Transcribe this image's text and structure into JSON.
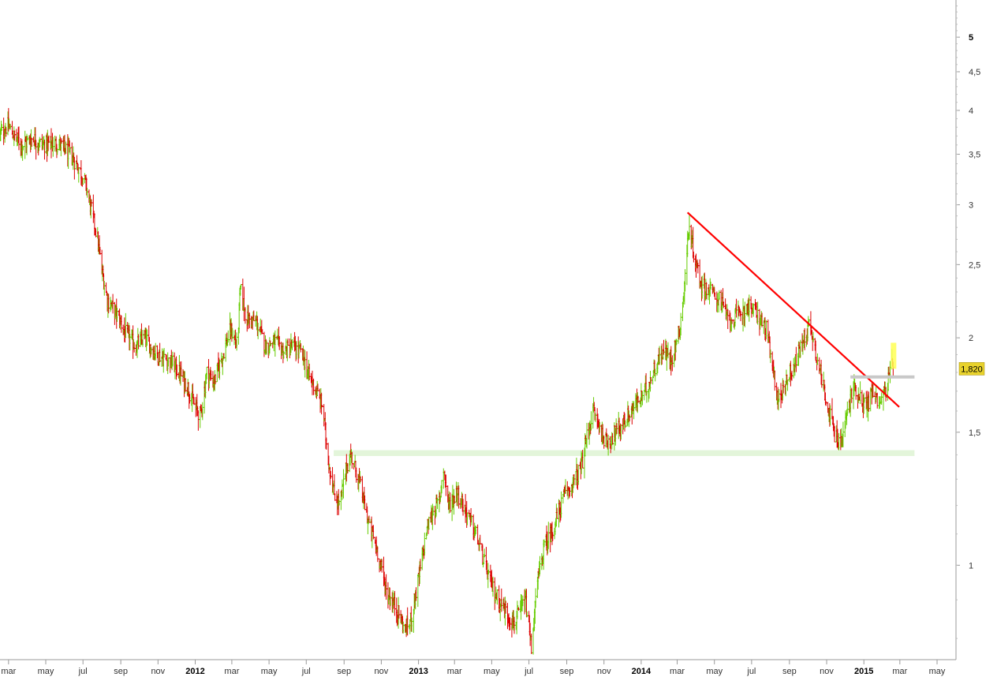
{
  "chart_data": {
    "type": "bar",
    "subtype": "ohlc",
    "scale": "log",
    "ylim": [
      0.75,
      5.6
    ],
    "y_ticks": [
      {
        "value": 1,
        "label": "1",
        "bold": false
      },
      {
        "value": 1.5,
        "label": "1,5",
        "bold": false
      },
      {
        "value": 2,
        "label": "2",
        "bold": false
      },
      {
        "value": 2.5,
        "label": "2,5",
        "bold": false
      },
      {
        "value": 3,
        "label": "3",
        "bold": false
      },
      {
        "value": 3.5,
        "label": "3,5",
        "bold": false
      },
      {
        "value": 4,
        "label": "4",
        "bold": false
      },
      {
        "value": 4.5,
        "label": "4,5",
        "bold": false
      },
      {
        "value": 5,
        "label": "5",
        "bold": true
      }
    ],
    "x_range": [
      "2011-02-15",
      "2015-06-01"
    ],
    "x_ticks": [
      {
        "date": "2011-03-01",
        "label": "mar",
        "bold": false
      },
      {
        "date": "2011-05-01",
        "label": "may",
        "bold": false
      },
      {
        "date": "2011-07-01",
        "label": "jul",
        "bold": false
      },
      {
        "date": "2011-09-01",
        "label": "sep",
        "bold": false
      },
      {
        "date": "2011-11-01",
        "label": "nov",
        "bold": false
      },
      {
        "date": "2012-01-01",
        "label": "2012",
        "bold": true
      },
      {
        "date": "2012-03-01",
        "label": "mar",
        "bold": false
      },
      {
        "date": "2012-05-01",
        "label": "may",
        "bold": false
      },
      {
        "date": "2012-07-01",
        "label": "jul",
        "bold": false
      },
      {
        "date": "2012-09-01",
        "label": "sep",
        "bold": false
      },
      {
        "date": "2012-11-01",
        "label": "nov",
        "bold": false
      },
      {
        "date": "2013-01-01",
        "label": "2013",
        "bold": true
      },
      {
        "date": "2013-03-01",
        "label": "mar",
        "bold": false
      },
      {
        "date": "2013-05-01",
        "label": "may",
        "bold": false
      },
      {
        "date": "2013-07-01",
        "label": "jul",
        "bold": false
      },
      {
        "date": "2013-09-01",
        "label": "sep",
        "bold": false
      },
      {
        "date": "2013-11-01",
        "label": "nov",
        "bold": false
      },
      {
        "date": "2014-01-01",
        "label": "2014",
        "bold": true
      },
      {
        "date": "2014-03-01",
        "label": "mar",
        "bold": false
      },
      {
        "date": "2014-05-01",
        "label": "may",
        "bold": false
      },
      {
        "date": "2014-07-01",
        "label": "jul",
        "bold": false
      },
      {
        "date": "2014-09-01",
        "label": "sep",
        "bold": false
      },
      {
        "date": "2014-11-01",
        "label": "nov",
        "bold": false
      },
      {
        "date": "2015-01-01",
        "label": "2015",
        "bold": true
      },
      {
        "date": "2015-03-01",
        "label": "mar",
        "bold": false
      },
      {
        "date": "2015-05-01",
        "label": "may",
        "bold": false
      }
    ],
    "price_path": [
      [
        "2011-02-15",
        3.72
      ],
      [
        "2011-02-28",
        3.82
      ],
      [
        "2011-03-10",
        3.7
      ],
      [
        "2011-03-25",
        3.6
      ],
      [
        "2011-04-10",
        3.68
      ],
      [
        "2011-04-25",
        3.6
      ],
      [
        "2011-05-10",
        3.62
      ],
      [
        "2011-05-25",
        3.6
      ],
      [
        "2011-06-10",
        3.5
      ],
      [
        "2011-06-25",
        3.35
      ],
      [
        "2011-07-05",
        3.2
      ],
      [
        "2011-07-15",
        2.95
      ],
      [
        "2011-07-25",
        2.7
      ],
      [
        "2011-08-01",
        2.45
      ],
      [
        "2011-08-10",
        2.25
      ],
      [
        "2011-08-25",
        2.15
      ],
      [
        "2011-09-10",
        2.02
      ],
      [
        "2011-09-25",
        1.95
      ],
      [
        "2011-10-10",
        2.0
      ],
      [
        "2011-10-25",
        1.92
      ],
      [
        "2011-11-10",
        1.88
      ],
      [
        "2011-11-25",
        1.85
      ],
      [
        "2011-12-10",
        1.78
      ],
      [
        "2011-12-20",
        1.72
      ],
      [
        "2011-12-31",
        1.62
      ],
      [
        "2012-01-10",
        1.58
      ],
      [
        "2012-01-20",
        1.8
      ],
      [
        "2012-02-01",
        1.75
      ],
      [
        "2012-02-15",
        1.9
      ],
      [
        "2012-02-28",
        2.05
      ],
      [
        "2012-03-10",
        1.95
      ],
      [
        "2012-03-15",
        2.32
      ],
      [
        "2012-03-25",
        2.12
      ],
      [
        "2012-04-10",
        2.1
      ],
      [
        "2012-04-25",
        1.95
      ],
      [
        "2012-05-10",
        1.98
      ],
      [
        "2012-05-25",
        1.92
      ],
      [
        "2012-06-10",
        1.95
      ],
      [
        "2012-06-25",
        1.9
      ],
      [
        "2012-07-05",
        1.78
      ],
      [
        "2012-07-15",
        1.72
      ],
      [
        "2012-07-28",
        1.62
      ],
      [
        "2012-08-05",
        1.4
      ],
      [
        "2012-08-15",
        1.25
      ],
      [
        "2012-08-25",
        1.2
      ],
      [
        "2012-09-05",
        1.35
      ],
      [
        "2012-09-12",
        1.4
      ],
      [
        "2012-09-25",
        1.3
      ],
      [
        "2012-10-10",
        1.15
      ],
      [
        "2012-10-25",
        1.05
      ],
      [
        "2012-11-10",
        0.92
      ],
      [
        "2012-11-25",
        0.88
      ],
      [
        "2012-12-10",
        0.82
      ],
      [
        "2012-12-20",
        0.85
      ],
      [
        "2013-01-05",
        1.0
      ],
      [
        "2013-01-15",
        1.12
      ],
      [
        "2013-01-25",
        1.18
      ],
      [
        "2013-02-05",
        1.22
      ],
      [
        "2013-02-10",
        1.36
      ],
      [
        "2013-02-20",
        1.2
      ],
      [
        "2013-03-05",
        1.25
      ],
      [
        "2013-03-20",
        1.18
      ],
      [
        "2013-04-05",
        1.1
      ],
      [
        "2013-04-20",
        1.0
      ],
      [
        "2013-05-05",
        0.92
      ],
      [
        "2013-05-20",
        0.88
      ],
      [
        "2013-06-05",
        0.84
      ],
      [
        "2013-06-15",
        0.86
      ],
      [
        "2013-06-25",
        0.9
      ],
      [
        "2013-07-05",
        0.78
      ],
      [
        "2013-07-15",
        0.95
      ],
      [
        "2013-07-25",
        1.05
      ],
      [
        "2013-08-10",
        1.12
      ],
      [
        "2013-08-25",
        1.22
      ],
      [
        "2013-09-10",
        1.28
      ],
      [
        "2013-09-25",
        1.35
      ],
      [
        "2013-10-05",
        1.5
      ],
      [
        "2013-10-15",
        1.6
      ],
      [
        "2013-10-25",
        1.52
      ],
      [
        "2013-11-05",
        1.45
      ],
      [
        "2013-11-20",
        1.5
      ],
      [
        "2013-12-05",
        1.55
      ],
      [
        "2013-12-20",
        1.62
      ],
      [
        "2014-01-05",
        1.68
      ],
      [
        "2014-01-20",
        1.8
      ],
      [
        "2014-02-05",
        1.92
      ],
      [
        "2014-02-20",
        1.88
      ],
      [
        "2014-03-05",
        2.05
      ],
      [
        "2014-03-12",
        2.3
      ],
      [
        "2014-03-20",
        2.8
      ],
      [
        "2014-03-30",
        2.55
      ],
      [
        "2014-04-10",
        2.35
      ],
      [
        "2014-04-25",
        2.3
      ],
      [
        "2014-05-10",
        2.25
      ],
      [
        "2014-05-25",
        2.1
      ],
      [
        "2014-06-10",
        2.15
      ],
      [
        "2014-06-25",
        2.2
      ],
      [
        "2014-07-10",
        2.15
      ],
      [
        "2014-07-25",
        2.05
      ],
      [
        "2014-08-05",
        1.8
      ],
      [
        "2014-08-15",
        1.65
      ],
      [
        "2014-08-25",
        1.75
      ],
      [
        "2014-09-10",
        1.85
      ],
      [
        "2014-09-20",
        1.95
      ],
      [
        "2014-10-05",
        2.1
      ],
      [
        "2014-10-12",
        1.95
      ],
      [
        "2014-10-25",
        1.75
      ],
      [
        "2014-11-05",
        1.6
      ],
      [
        "2014-11-15",
        1.48
      ],
      [
        "2014-11-25",
        1.45
      ],
      [
        "2014-12-05",
        1.6
      ],
      [
        "2014-12-15",
        1.72
      ],
      [
        "2014-12-25",
        1.68
      ],
      [
        "2015-01-05",
        1.62
      ],
      [
        "2015-01-15",
        1.7
      ],
      [
        "2015-01-25",
        1.65
      ],
      [
        "2015-02-05",
        1.7
      ],
      [
        "2015-02-12",
        1.78
      ],
      [
        "2015-02-18",
        1.85
      ]
    ],
    "annotations": [
      {
        "type": "trendline",
        "color": "#ff0000",
        "from": [
          "2014-03-18",
          2.93
        ],
        "to": [
          "2015-02-28",
          1.62
        ]
      },
      {
        "type": "band",
        "color": "#e3f5da",
        "from_date": "2012-08-15",
        "to_date": "2015-03-25",
        "low": 1.395,
        "high": 1.42
      },
      {
        "type": "hline",
        "color": "#c8c8c8",
        "from_date": "2014-12-10",
        "to_date": "2015-03-25",
        "value": 1.775
      },
      {
        "type": "highlight",
        "color": "#ffff55",
        "date": "2015-02-18",
        "low": 1.82,
        "high": 1.97
      }
    ],
    "last_price": {
      "value": 1.82,
      "label": "1,820",
      "bg_color": "#e8d22c"
    },
    "colors": {
      "up": "#66cc00",
      "down": "#dd0000",
      "axis": "#999999"
    }
  }
}
